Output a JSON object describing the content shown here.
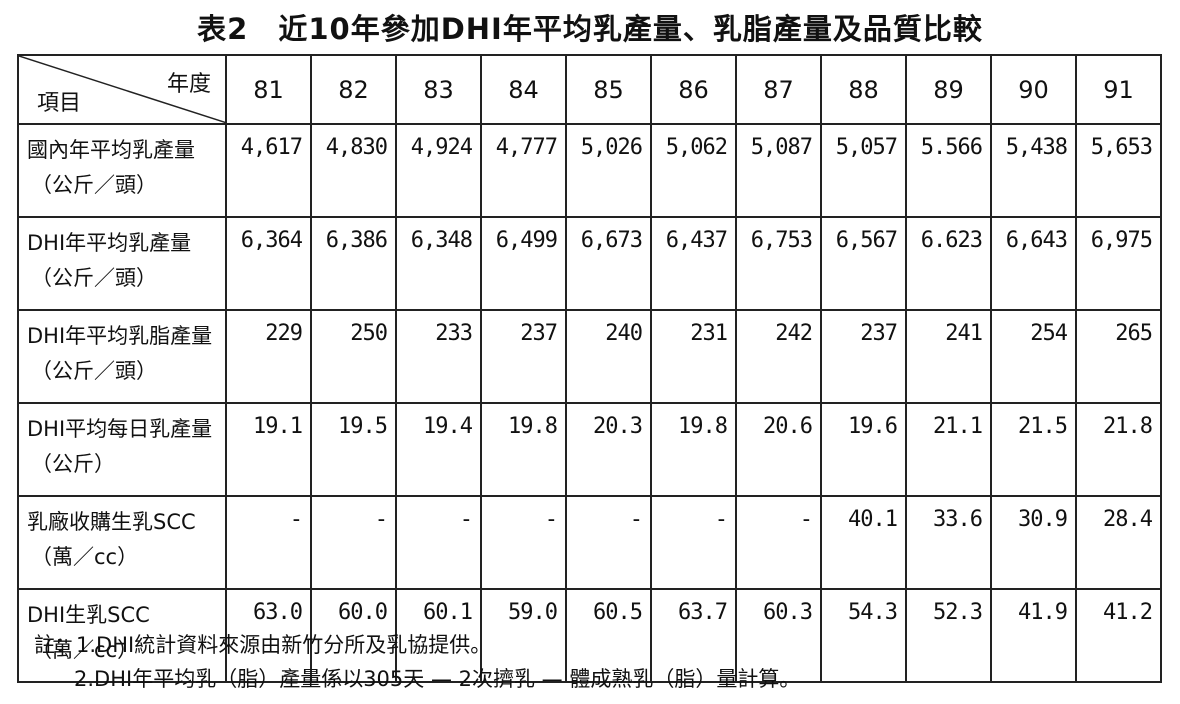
{
  "title": "表2　近10年參加DHI年平均乳產量、乳脂產量及品質比較",
  "header": {
    "year_label": "年度",
    "item_label": "項目",
    "years": [
      "81",
      "82",
      "83",
      "84",
      "85",
      "86",
      "87",
      "88",
      "89",
      "90",
      "91"
    ]
  },
  "rows": [
    {
      "label_line1": "國內年平均乳產量",
      "label_line2": "（公斤／頭）",
      "values": [
        "4,617",
        "4,830",
        "4,924",
        "4,777",
        "5,026",
        "5,062",
        "5,087",
        "5,057",
        "5.566",
        "5,438",
        "5,653"
      ]
    },
    {
      "label_line1": "DHI年平均乳產量",
      "label_line2": "（公斤／頭）",
      "values": [
        "6,364",
        "6,386",
        "6,348",
        "6,499",
        "6,673",
        "6,437",
        "6,753",
        "6,567",
        "6.623",
        "6,643",
        "6,975"
      ]
    },
    {
      "label_line1": "DHI年平均乳脂產量",
      "label_line2": "（公斤／頭）",
      "values": [
        "229",
        "250",
        "233",
        "237",
        "240",
        "231",
        "242",
        "237",
        "241",
        "254",
        "265"
      ]
    },
    {
      "label_line1": "DHI平均每日乳產量",
      "label_line2": "（公斤）",
      "values": [
        "19.1",
        "19.5",
        "19.4",
        "19.8",
        "20.3",
        "19.8",
        "20.6",
        "19.6",
        "21.1",
        "21.5",
        "21.8"
      ]
    },
    {
      "label_line1": "乳廠收購生乳SCC",
      "label_line2": "（萬／cc）",
      "values": [
        "-",
        "-",
        "-",
        "-",
        "-",
        "-",
        "-",
        "40.1",
        "33.6",
        "30.9",
        "28.4"
      ]
    },
    {
      "label_line1": "DHI生乳SCC",
      "label_line2": "（萬／cc）",
      "values": [
        "63.0",
        "60.0",
        "60.1",
        "59.0",
        "60.5",
        "63.7",
        "60.3",
        "54.3",
        "52.3",
        "41.9",
        "41.2"
      ]
    }
  ],
  "notes": {
    "line1": "註：1.DHI統計資料來源由新竹分所及乳協提供。",
    "line2": "2.DHI年平均乳（脂）產量係以305天 — 2次擠乳 — 體成熟乳（脂）量計算。"
  }
}
